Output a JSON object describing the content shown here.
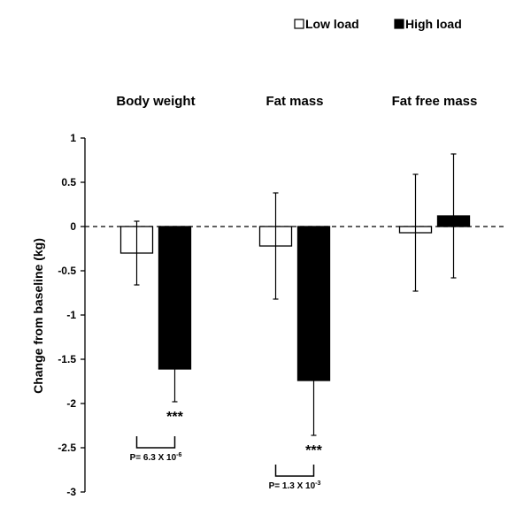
{
  "chart_data": {
    "type": "bar",
    "ylabel": "Change from baseline (kg)",
    "ylim": [
      -3,
      1
    ],
    "yticks": [
      1,
      0.5,
      0,
      -0.5,
      -1,
      -1.5,
      -2,
      -2.5,
      -3
    ],
    "ytick_labels": [
      "1",
      "0.5",
      "0",
      "-0.5",
      "-1",
      "-1.5",
      "-2",
      "-2.5",
      "-3"
    ],
    "legend_position": "top-right",
    "legend": [
      {
        "name": "Low load",
        "color": "#ffffff"
      },
      {
        "name": "High load",
        "color": "#000000"
      }
    ],
    "categories": [
      "Body weight",
      "Fat mass",
      "Fat free mass"
    ],
    "series": [
      {
        "name": "Low load",
        "color": "#ffffff",
        "values": [
          -0.3,
          -0.22,
          -0.07
        ],
        "error": [
          0.36,
          0.6,
          0.66
        ]
      },
      {
        "name": "High load",
        "color": "#000000",
        "values": [
          -1.61,
          -1.74,
          0.12
        ],
        "error": [
          0.37,
          0.62,
          0.7
        ]
      }
    ],
    "significance": [
      {
        "category": 0,
        "stars": "***",
        "p_base": "P= 6.3 X 10",
        "p_exp": "-6"
      },
      {
        "category": 1,
        "stars": "***",
        "p_base": "P= 1.3 X 10",
        "p_exp": "-3"
      }
    ],
    "zero_line": "dashed"
  }
}
